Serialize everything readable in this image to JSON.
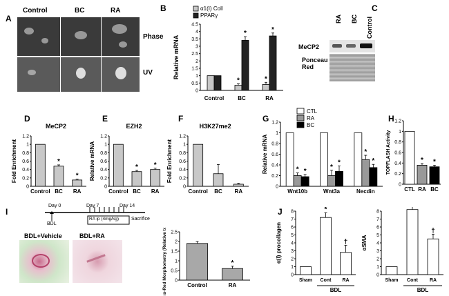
{
  "panels": {
    "A": {
      "letter": "A",
      "columns": [
        "Control",
        "BC",
        "RA"
      ],
      "rows": [
        "Phase",
        "UV"
      ]
    },
    "B": {
      "letter": "B",
      "chart_ref": 0
    },
    "C": {
      "letter": "C",
      "lanes": [
        "RA",
        "BC",
        "Control"
      ],
      "bands": [
        "MeCP2",
        "Ponceau Red"
      ]
    },
    "D": {
      "letter": "D"
    },
    "E": {
      "letter": "E"
    },
    "F": {
      "letter": "F"
    },
    "G": {
      "letter": "G"
    },
    "H": {
      "letter": "H"
    },
    "I": {
      "letter": "I",
      "timeline": {
        "day0": "Day 0",
        "day7": "Day 7",
        "day14": "Day 14",
        "bdl": "BDL",
        "treatment": "RA ip (4mg/kg)",
        "sacrifice": "Sacrifice"
      },
      "images": [
        "BDL+Vehicle",
        "BDL+RA"
      ]
    },
    "J": {
      "letter": "J"
    }
  },
  "chart_data": [
    {
      "id": "B",
      "type": "bar",
      "categories": [
        "Control",
        "BC",
        "RA"
      ],
      "series": [
        {
          "name": "α1(I) Coll",
          "values": [
            1,
            0.35,
            0.4
          ],
          "err": [
            0,
            0.1,
            0.15
          ]
        },
        {
          "name": "PPARγ",
          "values": [
            1,
            3.4,
            3.7
          ],
          "err": [
            0,
            0.25,
            0.2
          ]
        }
      ],
      "ylabel": "Relative mRNA",
      "ylim": [
        0,
        4.5
      ],
      "ticks": [
        "0",
        "0.5",
        "1",
        "1.5",
        "2",
        "2.5",
        "3",
        "3.5",
        "4",
        "4.5"
      ],
      "stars": [
        "",
        "*",
        "*"
      ],
      "stars2": [
        "",
        "*",
        "*"
      ]
    },
    {
      "id": "D",
      "type": "bar",
      "title": "MeCP2",
      "categories": [
        "Control",
        "BC",
        "RA"
      ],
      "values": [
        1,
        0.48,
        0.15
      ],
      "err": [
        0,
        0.03,
        0.02
      ],
      "stars": [
        "",
        "*",
        "*"
      ],
      "ylabel": "Fold Enrichment",
      "ylim": [
        0,
        1.2
      ],
      "ticks": [
        "0",
        "0.2",
        "0.4",
        "0.6",
        "0.8",
        "1",
        "1.2"
      ]
    },
    {
      "id": "E",
      "type": "bar",
      "title": "EZH2",
      "categories": [
        "Control",
        "BC",
        "RA"
      ],
      "values": [
        1,
        0.35,
        0.4
      ],
      "err": [
        0,
        0.03,
        0.03
      ],
      "stars": [
        "",
        "*",
        "*"
      ],
      "ylabel": "Relative mRNA",
      "ylim": [
        0,
        1.2
      ],
      "ticks": [
        "0",
        "0.2",
        "0.4",
        "0.6",
        "0.8",
        "1",
        "1.2"
      ]
    },
    {
      "id": "F",
      "type": "bar",
      "title": "H3K27me2",
      "categories": [
        "Control",
        "BC",
        "RA"
      ],
      "values": [
        1,
        0.3,
        0.05
      ],
      "err": [
        0,
        0.22,
        0.02
      ],
      "stars": [
        "",
        "",
        ""
      ],
      "ylabel": "Fold Enrichment",
      "ylim": [
        0,
        1.2
      ],
      "ticks": [
        "0",
        "0.2",
        "0.4",
        "0.6",
        "0.8",
        "1",
        "1.2"
      ]
    },
    {
      "id": "G",
      "type": "bar",
      "categories": [
        "Wnt10b",
        "Wnt3a",
        "Necdin"
      ],
      "series": [
        {
          "name": "CTL",
          "values": [
            1,
            1,
            1
          ],
          "err": [
            0,
            0,
            0
          ],
          "color": "#ffffff"
        },
        {
          "name": "RA",
          "values": [
            0.2,
            0.2,
            0.5
          ],
          "err": [
            0.05,
            0.1,
            0.08
          ],
          "color": "#999999"
        },
        {
          "name": "BC",
          "values": [
            0.18,
            0.28,
            0.35
          ],
          "err": [
            0.04,
            0.1,
            0.06
          ],
          "color": "#000000"
        }
      ],
      "ylabel": "Relative mRNA",
      "ylim": [
        0,
        1.2
      ],
      "ticks": [
        "0",
        "0.2",
        "0.4",
        "0.6",
        "0.8",
        "1",
        "1.2"
      ]
    },
    {
      "id": "H",
      "type": "bar",
      "categories": [
        "CTL",
        "RA",
        "BC"
      ],
      "values": [
        1,
        0.36,
        0.33
      ],
      "err": [
        0,
        0.03,
        0.03
      ],
      "colors": [
        "#ffffff",
        "#999999",
        "#000000"
      ],
      "stars": [
        "",
        "*",
        "*"
      ],
      "ylabel": "TOPFLASH Activity",
      "ylim": [
        0,
        1.2
      ],
      "ticks": [
        "0",
        "0.2",
        "0.4",
        "0.6",
        "0.8",
        "1",
        "1.2"
      ]
    },
    {
      "id": "I",
      "type": "bar",
      "categories": [
        "Control",
        "RA"
      ],
      "values": [
        1.9,
        0.6
      ],
      "err": [
        0.1,
        0.12
      ],
      "stars": [
        "",
        "*"
      ],
      "ylabel": "Sirius-Red Morphometry (Relative to Control)",
      "ylim": [
        0,
        2.5
      ],
      "ticks": [
        "0",
        "0.5",
        "1",
        "1.5",
        "2",
        "2.5"
      ]
    },
    {
      "id": "J1",
      "type": "bar",
      "categories": [
        "Sham",
        "Cont",
        "RA"
      ],
      "group_label": "BDL",
      "values": [
        1,
        7.2,
        2.8
      ],
      "err": [
        0,
        0.6,
        0.9
      ],
      "stars": [
        "",
        "*",
        "†"
      ],
      "ylabel": "α(I) procollagen",
      "ylim": [
        0,
        8
      ],
      "ticks": [
        "0",
        "1",
        "2",
        "3",
        "4",
        "5",
        "6",
        "7",
        "8"
      ]
    },
    {
      "id": "J2",
      "type": "bar",
      "categories": [
        "Sham",
        "Cont",
        "RA"
      ],
      "group_label": "BDL",
      "values": [
        1,
        8.2,
        4.5
      ],
      "err": [
        0,
        1.2,
        0.6
      ],
      "stars": [
        "",
        "*",
        "†"
      ],
      "ylabel": "αSMA",
      "ylim": [
        0,
        8
      ],
      "ticks": [
        "0",
        "1",
        "2",
        "3",
        "4",
        "5",
        "6",
        "7",
        "8"
      ]
    }
  ]
}
